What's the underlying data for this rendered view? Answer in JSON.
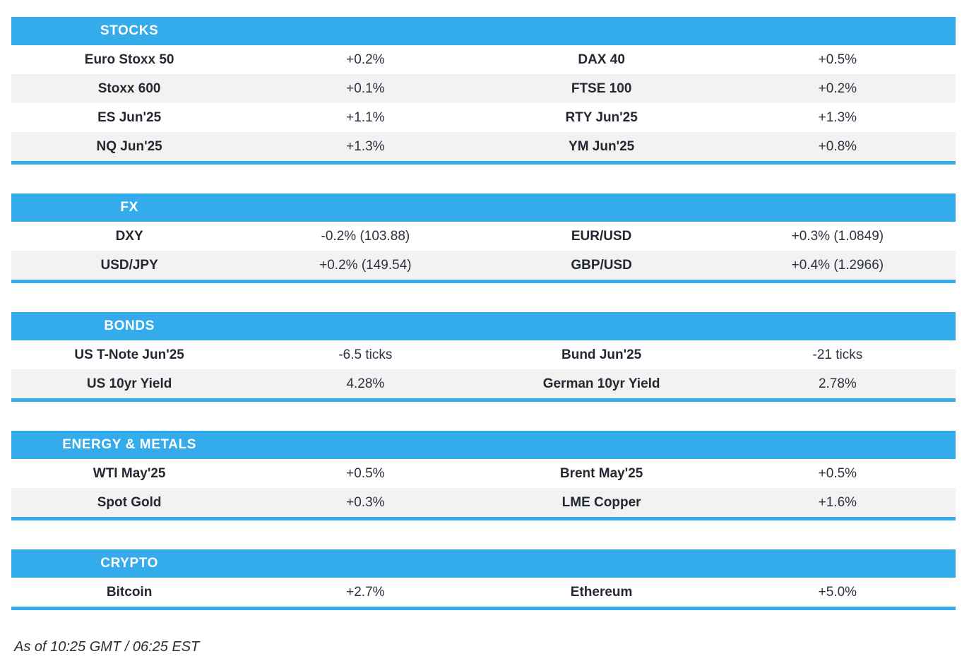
{
  "colors": {
    "accent": "#34ABEB",
    "stripe": "#F2F2F2",
    "header_text": "#FFFFFF",
    "label_text": "#242833",
    "value_text": "#2C3240"
  },
  "sections": [
    {
      "title": "STOCKS",
      "rows": [
        [
          "Euro Stoxx 50",
          "+0.2%",
          "DAX 40",
          "+0.5%"
        ],
        [
          "Stoxx 600",
          "+0.1%",
          "FTSE 100",
          "+0.2%"
        ],
        [
          "ES Jun'25",
          "+1.1%",
          "RTY Jun'25",
          "+1.3%"
        ],
        [
          "NQ Jun'25",
          "+1.3%",
          "YM Jun'25",
          "+0.8%"
        ]
      ]
    },
    {
      "title": "FX",
      "rows": [
        [
          "DXY",
          "-0.2% (103.88)",
          "EUR/USD",
          "+0.3% (1.0849)"
        ],
        [
          "USD/JPY",
          "+0.2% (149.54)",
          "GBP/USD",
          "+0.4% (1.2966)"
        ]
      ]
    },
    {
      "title": "BONDS",
      "rows": [
        [
          "US T-Note Jun'25",
          "-6.5 ticks",
          "Bund Jun'25",
          "-21 ticks"
        ],
        [
          "US 10yr Yield",
          "4.28%",
          "German 10yr Yield",
          "2.78%"
        ]
      ]
    },
    {
      "title": "ENERGY & METALS",
      "rows": [
        [
          "WTI May'25",
          "+0.5%",
          "Brent May'25",
          "+0.5%"
        ],
        [
          "Spot Gold",
          "+0.3%",
          "LME Copper",
          "+1.6%"
        ]
      ]
    },
    {
      "title": "CRYPTO",
      "rows": [
        [
          "Bitcoin",
          "+2.7%",
          "Ethereum",
          "+5.0%"
        ]
      ]
    }
  ],
  "footer": {
    "as_of": "As of 10:25 GMT / 06:25 EST"
  }
}
